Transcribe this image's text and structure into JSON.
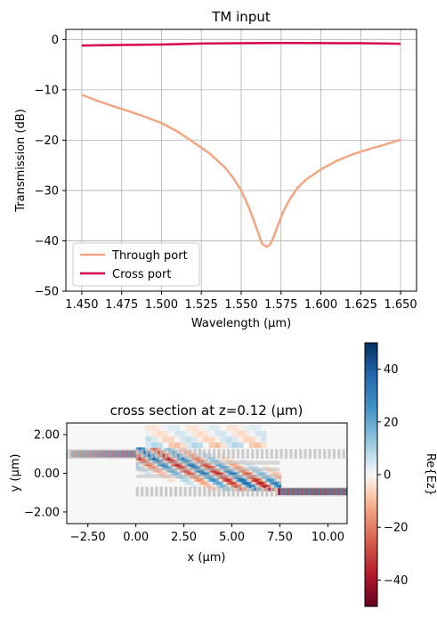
{
  "chart_data": [
    {
      "type": "line",
      "title": "TM input",
      "xlabel": "Wavelength (µm)",
      "ylabel": "Transmission (dB)",
      "xlim": [
        1.44,
        1.66
      ],
      "ylim": [
        -50,
        2
      ],
      "xticks": [
        "1.450",
        "1.475",
        "1.500",
        "1.525",
        "1.550",
        "1.575",
        "1.600",
        "1.625",
        "1.650"
      ],
      "xtick_values": [
        1.45,
        1.475,
        1.5,
        1.525,
        1.55,
        1.575,
        1.6,
        1.625,
        1.65
      ],
      "yticks": [
        "0",
        "−10",
        "−20",
        "−30",
        "−40",
        "−50"
      ],
      "ytick_values": [
        0,
        -10,
        -20,
        -30,
        -40,
        -50
      ],
      "grid": true,
      "legend_position": "lower-left",
      "series": [
        {
          "name": "Through port",
          "color": "#f4a582",
          "x": [
            1.45,
            1.46,
            1.47,
            1.48,
            1.49,
            1.5,
            1.51,
            1.52,
            1.53,
            1.54,
            1.545,
            1.55,
            1.555,
            1.56,
            1.563,
            1.566,
            1.568,
            1.57,
            1.573,
            1.576,
            1.58,
            1.585,
            1.59,
            1.6,
            1.61,
            1.62,
            1.63,
            1.64,
            1.65
          ],
          "y": [
            -11,
            -12.2,
            -13.3,
            -14.3,
            -15.4,
            -16.6,
            -18.3,
            -20.4,
            -22.6,
            -25.5,
            -27.5,
            -30.0,
            -33.5,
            -37.8,
            -40.5,
            -41.2,
            -40.8,
            -39.5,
            -37.0,
            -34.5,
            -32.0,
            -29.6,
            -28.0,
            -25.8,
            -24.1,
            -22.8,
            -21.8,
            -20.9,
            -19.9
          ]
        },
        {
          "name": "Cross port",
          "color": "#d6004f",
          "x": [
            1.45,
            1.475,
            1.5,
            1.525,
            1.55,
            1.575,
            1.6,
            1.625,
            1.65
          ],
          "y": [
            -1.2,
            -1.1,
            -1.0,
            -0.8,
            -0.75,
            -0.7,
            -0.72,
            -0.75,
            -0.85
          ]
        }
      ]
    },
    {
      "type": "heatmap",
      "title": "cross section at z=0.12 (µm)",
      "xlabel": "x (µm)",
      "ylabel": "y (µm)",
      "xlim": [
        -3.6,
        11.0
      ],
      "ylim": [
        -2.6,
        2.6
      ],
      "xticks": [
        "−2.50",
        "0.00",
        "2.50",
        "5.00",
        "7.50",
        "10.00"
      ],
      "xtick_values": [
        -2.5,
        0,
        2.5,
        5,
        7.5,
        10
      ],
      "yticks": [
        "2.00",
        "0.00",
        "−2.00"
      ],
      "ytick_values": [
        2,
        0,
        -2
      ],
      "colorbar": {
        "label": "Re{Ez}",
        "range": [
          -50,
          50
        ],
        "ticks": [
          "40",
          "20",
          "0",
          "−20",
          "−40"
        ],
        "tick_values": [
          40,
          20,
          0,
          -20,
          -40
        ],
        "colormap": "RdBu"
      },
      "structures": {
        "top_waveguide_y": 1.0,
        "bottom_waveguide_y": -0.95,
        "grating_x_start": 0.0,
        "grating_x_end": 7.5,
        "grating_y_bottom": -1.1,
        "grating_y_top": 0.5,
        "color": "#bdbdbd"
      }
    }
  ]
}
